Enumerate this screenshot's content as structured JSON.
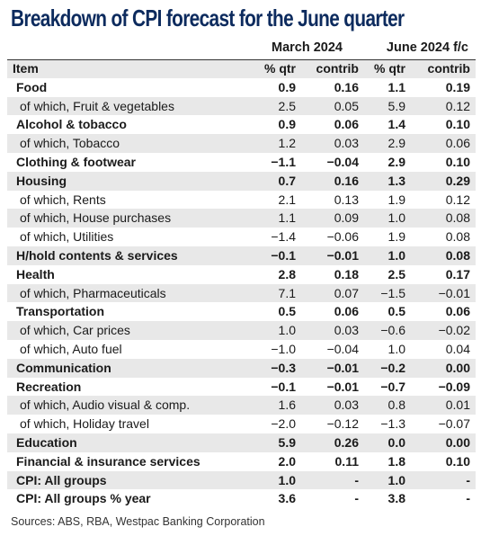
{
  "title": "Breakdown of CPI forecast for the June quarter",
  "groups": {
    "g1": "March 2024",
    "g2": "June 2024 f/c"
  },
  "headers": {
    "item": "Item",
    "qtr1": "% qtr",
    "contrib1": "contrib",
    "qtr2": "% qtr",
    "contrib2": "contrib"
  },
  "rows": [
    {
      "label": "Food",
      "v": [
        "0.9",
        "0.16",
        "1.1",
        "0.19"
      ],
      "kind": "cat"
    },
    {
      "label": "of which, Fruit & vegetables",
      "v": [
        "2.5",
        "0.05",
        "5.9",
        "0.12"
      ],
      "kind": "sub"
    },
    {
      "label": "Alcohol & tobacco",
      "v": [
        "0.9",
        "0.06",
        "1.4",
        "0.10"
      ],
      "kind": "cat"
    },
    {
      "label": "of which, Tobacco",
      "v": [
        "1.2",
        "0.03",
        "2.9",
        "0.06"
      ],
      "kind": "sub"
    },
    {
      "label": "Clothing & footwear",
      "v": [
        "-1.1",
        "-0.04",
        "2.9",
        "0.10"
      ],
      "kind": "cat"
    },
    {
      "label": "Housing",
      "v": [
        "0.7",
        "0.16",
        "1.3",
        "0.29"
      ],
      "kind": "cat"
    },
    {
      "label": "of which, Rents",
      "v": [
        "2.1",
        "0.13",
        "1.9",
        "0.12"
      ],
      "kind": "sub"
    },
    {
      "label": "of which, House purchases",
      "v": [
        "1.1",
        "0.09",
        "1.0",
        "0.08"
      ],
      "kind": "sub"
    },
    {
      "label": "of which, Utilities",
      "v": [
        "-1.4",
        "-0.06",
        "1.9",
        "0.08"
      ],
      "kind": "sub"
    },
    {
      "label": "H/hold contents & services",
      "v": [
        "-0.1",
        "-0.01",
        "1.0",
        "0.08"
      ],
      "kind": "cat"
    },
    {
      "label": "Health",
      "v": [
        "2.8",
        "0.18",
        "2.5",
        "0.17"
      ],
      "kind": "cat"
    },
    {
      "label": "of which, Pharmaceuticals",
      "v": [
        "7.1",
        "0.07",
        "-1.5",
        "-0.01"
      ],
      "kind": "sub"
    },
    {
      "label": "Transportation",
      "v": [
        "0.5",
        "0.06",
        "0.5",
        "0.06"
      ],
      "kind": "cat"
    },
    {
      "label": "of which, Car prices",
      "v": [
        "1.0",
        "0.03",
        "-0.6",
        "-0.02"
      ],
      "kind": "sub"
    },
    {
      "label": "of which, Auto fuel",
      "v": [
        "-1.0",
        "-0.04",
        "1.0",
        "0.04"
      ],
      "kind": "sub"
    },
    {
      "label": "Communication",
      "v": [
        "-0.3",
        "-0.01",
        "-0.2",
        "0.00"
      ],
      "kind": "cat"
    },
    {
      "label": "Recreation",
      "v": [
        "-0.1",
        "-0.01",
        "-0.7",
        "-0.09"
      ],
      "kind": "cat"
    },
    {
      "label": "of which, Audio visual & comp.",
      "v": [
        "1.6",
        "0.03",
        "0.8",
        "0.01"
      ],
      "kind": "sub"
    },
    {
      "label": "of which, Holiday travel",
      "v": [
        "-2.0",
        "-0.12",
        "-1.3",
        "-0.07"
      ],
      "kind": "sub"
    },
    {
      "label": "Education",
      "v": [
        "5.9",
        "0.26",
        "0.0",
        "0.00"
      ],
      "kind": "cat"
    },
    {
      "label": "Financial & insurance services",
      "v": [
        "2.0",
        "0.11",
        "1.8",
        "0.10"
      ],
      "kind": "cat"
    },
    {
      "label": "CPI: All groups",
      "v": [
        "1.0",
        "-",
        "1.0",
        "-"
      ],
      "kind": "cat"
    },
    {
      "label": "CPI: All groups % year",
      "v": [
        "3.6",
        "-",
        "3.8",
        "-"
      ],
      "kind": "cat"
    }
  ],
  "footer": "Sources: ABS, RBA, Westpac Banking Corporation"
}
